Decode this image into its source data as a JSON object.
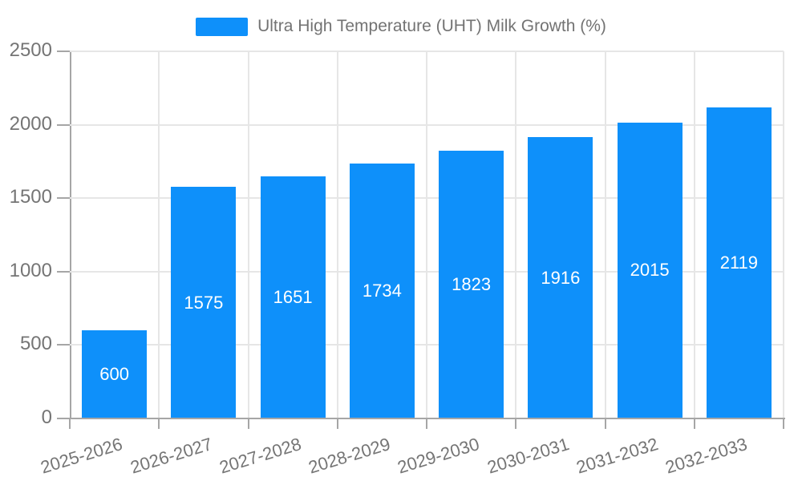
{
  "chart_data": {
    "type": "bar",
    "title": "",
    "xlabel": "",
    "ylabel": "",
    "legend": {
      "position": "top",
      "items": [
        "Ultra High Temperature (UHT) Milk Growth (%)"
      ]
    },
    "categories": [
      "2025-2026",
      "2026-2027",
      "2027-2028",
      "2028-2029",
      "2029-2030",
      "2030-2031",
      "2031-2032",
      "2032-2033"
    ],
    "series": [
      {
        "name": "Ultra High Temperature (UHT) Milk Growth (%)",
        "values": [
          600,
          1575,
          1651,
          1734,
          1823,
          1916,
          2015,
          2119
        ]
      }
    ],
    "ylim": [
      0,
      2500
    ],
    "yticks": [
      0,
      500,
      1000,
      1500,
      2000,
      2500
    ],
    "grid": true,
    "colors": {
      "bar": "#0e90fa",
      "value_label": "#ffffff",
      "axis_line": "#a6a6a6",
      "gridline": "#e6e6e6",
      "tick_label": "#757575",
      "legend_text": "#737373"
    }
  }
}
